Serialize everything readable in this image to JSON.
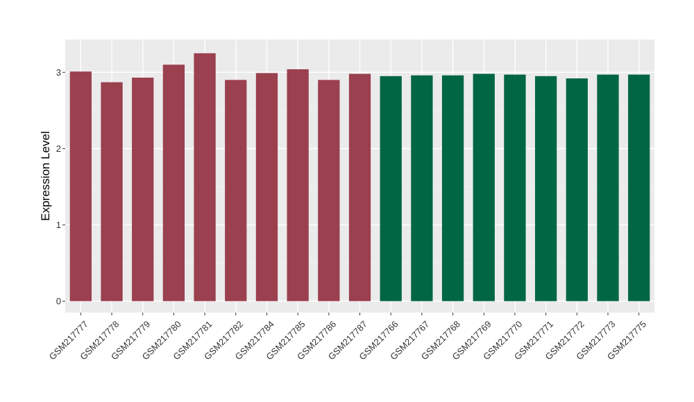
{
  "chart_data": {
    "type": "bar",
    "ylabel": "Expression Level",
    "xlabel": "",
    "ylim": [
      -0.15,
      3.43
    ],
    "yticks": [
      0,
      1,
      2,
      3
    ],
    "grid": true,
    "categories": [
      "GSM217777",
      "GSM217778",
      "GSM217779",
      "GSM217780",
      "GSM217781",
      "GSM217782",
      "GSM217784",
      "GSM217785",
      "GSM217786",
      "GSM217787",
      "GSM217766",
      "GSM217767",
      "GSM217768",
      "GSM217769",
      "GSM217770",
      "GSM217771",
      "GSM217772",
      "GSM217773",
      "GSM217775"
    ],
    "values": [
      3.01,
      2.87,
      2.93,
      3.1,
      3.25,
      2.9,
      2.99,
      3.04,
      2.9,
      2.98,
      2.95,
      2.96,
      2.96,
      2.98,
      2.97,
      2.95,
      2.92,
      2.97,
      2.97
    ],
    "bar_colors": [
      "#9a404f",
      "#9a404f",
      "#9a404f",
      "#9a404f",
      "#9a404f",
      "#9a404f",
      "#9a404f",
      "#9a404f",
      "#9a404f",
      "#9a404f",
      "#006643",
      "#006643",
      "#006643",
      "#006643",
      "#006643",
      "#006643",
      "#006643",
      "#006643",
      "#006643"
    ],
    "colors": {
      "panel": "#ebebeb",
      "grid_major": "#ffffff",
      "grid_minor": "#f3f3f3",
      "tick": "#333333"
    }
  }
}
